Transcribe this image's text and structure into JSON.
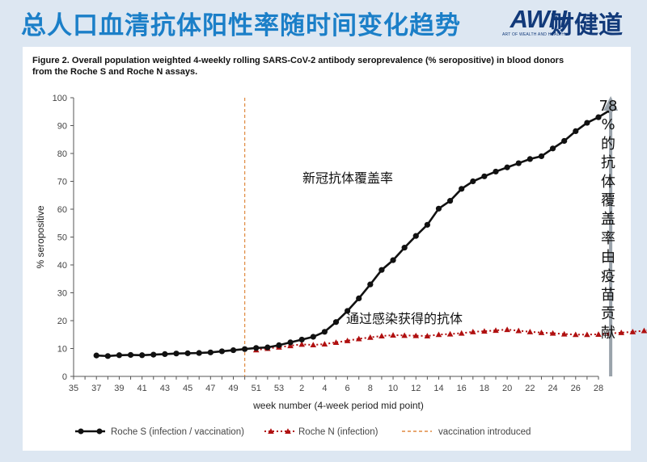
{
  "header": {
    "title": "总人口血清抗体阳性率随时间变化趋势",
    "logo_mark": "AWH",
    "logo_text": "财健道",
    "logo_sub": "ART OF WEALTH AND HEALTH"
  },
  "colors": {
    "title_blue": "#1b7fc8",
    "series_s": "#111111",
    "series_n": "#b01010",
    "vaccination_line": "#e08a40",
    "arrow": "#9aa3ab"
  },
  "chart_data": {
    "type": "line",
    "caption": "Figure 2. Overall population weighted 4-weekly rolling SARS-CoV-2 antibody seroprevalence (% seropositive) in blood donors from the Roche S and Roche N assays.",
    "xlabel": "week number (4-week period mid point)",
    "ylabel": "% seropositive",
    "ylim": [
      0,
      100
    ],
    "yticks": [
      "0",
      "10",
      "20",
      "30",
      "40",
      "50",
      "60",
      "70",
      "80",
      "90",
      "100"
    ],
    "xticks": [
      "35",
      "37",
      "39",
      "41",
      "43",
      "45",
      "47",
      "49",
      "51",
      "53",
      "2",
      "4",
      "6",
      "8",
      "10",
      "12",
      "14",
      "16",
      "18",
      "20",
      "22",
      "24",
      "26",
      "28"
    ],
    "grid": false,
    "legend_position": "bottom",
    "vaccination_introduced_at": "50",
    "series": [
      {
        "name": "Roche S (infection / vaccination)",
        "start_index": 2,
        "values": [
          7.5,
          7.3,
          7.6,
          7.7,
          7.6,
          7.8,
          8.0,
          8.2,
          8.3,
          8.4,
          8.6,
          9.0,
          9.4,
          9.8,
          10.2,
          10.4,
          11.2,
          12.2,
          13.2,
          14.2,
          16.0,
          19.5,
          23.5,
          28.0,
          33.0,
          38.2,
          41.7,
          46.2,
          50.4,
          54.4,
          60.2,
          63.0,
          67.3,
          70.0,
          71.8,
          73.5,
          75.0,
          76.5,
          78.0,
          79.0,
          81.8,
          84.5,
          88.0,
          91.0,
          93.0,
          95.5
        ]
      },
      {
        "name": "Roche N (infection)",
        "start_index": 16,
        "values": [
          9.5,
          10.0,
          10.5,
          11.0,
          11.5,
          11.3,
          11.6,
          12.2,
          12.8,
          13.5,
          14.0,
          14.5,
          14.8,
          14.7,
          14.6,
          14.5,
          15.0,
          15.2,
          15.5,
          16.0,
          16.2,
          16.5,
          16.8,
          16.4,
          16.0,
          15.7,
          15.5,
          15.2,
          15.0,
          15.0,
          15.1,
          15.4,
          15.7,
          16.0,
          16.4,
          17.0,
          16.5
        ]
      }
    ],
    "annotations": {
      "s_curve": "新冠抗体覆盖率",
      "n_curve": "通过感染获得的抗体",
      "side_note": "78%的抗体覆盖率由疫苗贡献"
    }
  }
}
